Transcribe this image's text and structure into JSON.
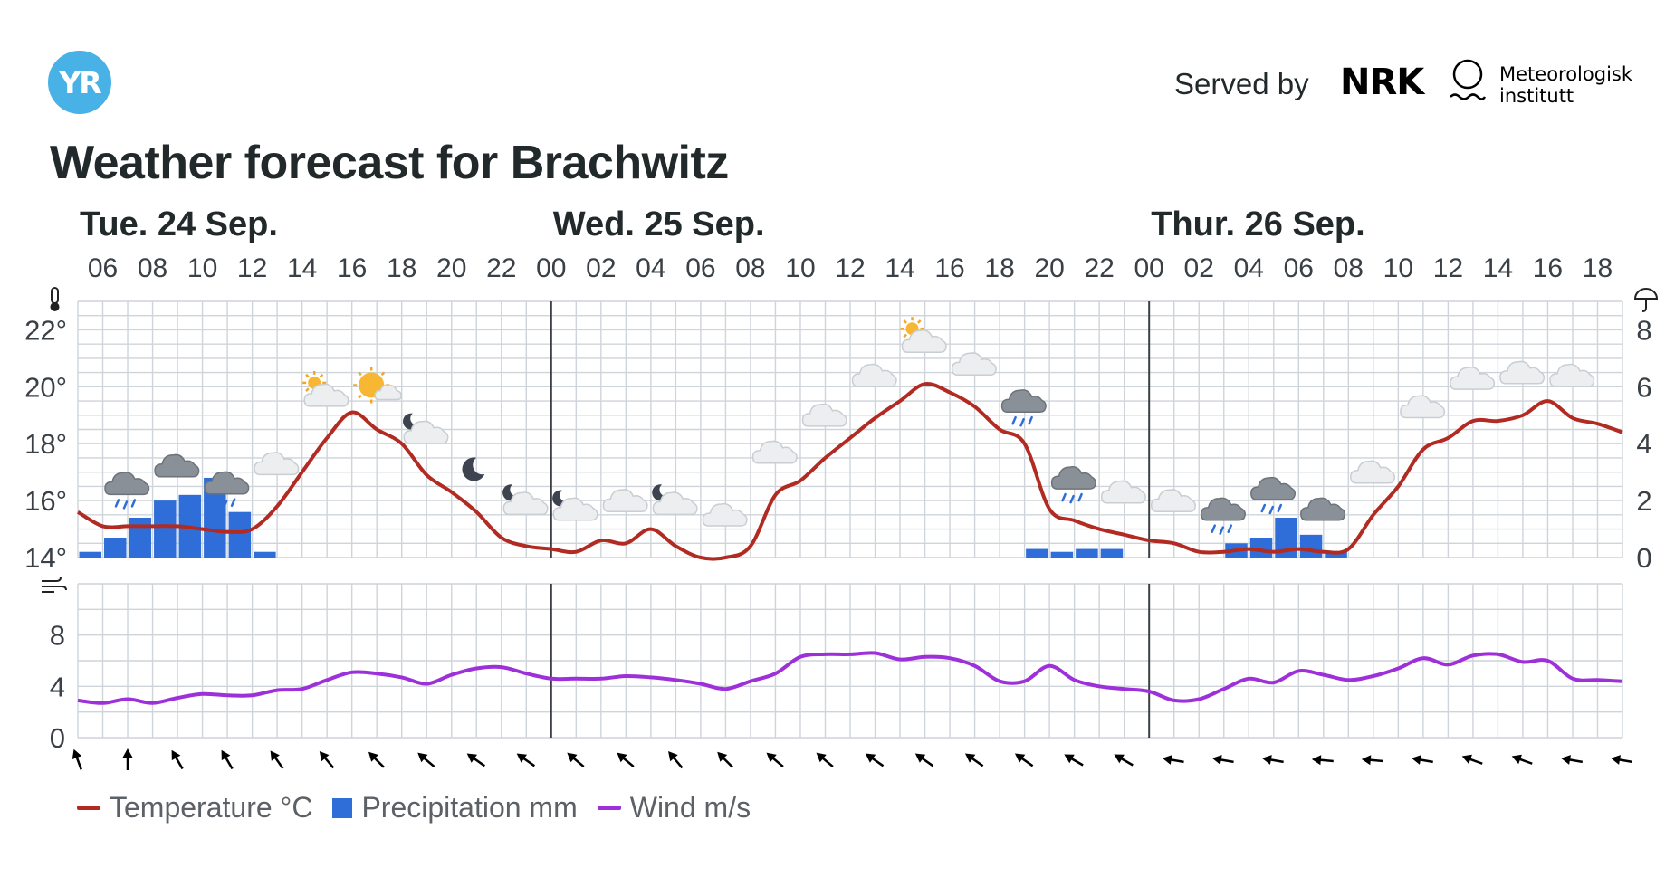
{
  "header": {
    "logo_text": "YR",
    "served_by": "Served by",
    "nrk_text": "NRK",
    "met_line1": "Meteorologisk",
    "met_line2": "institutt"
  },
  "title": "Weather forecast for Brachwitz",
  "chart_data": {
    "type": "line",
    "days": [
      {
        "label": "Tue. 24 Sep.",
        "start_hour": 5
      },
      {
        "label": "Wed. 25 Sep.",
        "start_hour": 24
      },
      {
        "label": "Thur. 26 Sep.",
        "start_hour": 48
      }
    ],
    "hour_range": [
      5,
      67
    ],
    "tick_labels": [
      "06",
      "08",
      "10",
      "12",
      "14",
      "16",
      "18",
      "20",
      "22",
      "00",
      "02",
      "04",
      "06",
      "08",
      "10",
      "12",
      "14",
      "16",
      "18",
      "20",
      "22",
      "00",
      "02",
      "04",
      "06",
      "08",
      "10",
      "12",
      "14",
      "16",
      "18"
    ],
    "tick_hours": [
      6,
      8,
      10,
      12,
      14,
      16,
      18,
      20,
      22,
      24,
      26,
      28,
      30,
      32,
      34,
      36,
      38,
      40,
      42,
      44,
      46,
      48,
      50,
      52,
      54,
      56,
      58,
      60,
      62,
      64,
      66
    ],
    "temperature": {
      "unit": "°C",
      "ylim": [
        14,
        23
      ],
      "ytick_labels": [
        "14°",
        "16°",
        "18°",
        "20°",
        "22°"
      ],
      "ytick_values": [
        14,
        16,
        18,
        20,
        22
      ],
      "points": [
        [
          5,
          15.6
        ],
        [
          6,
          15.1
        ],
        [
          7,
          15.1
        ],
        [
          8,
          15.1
        ],
        [
          9,
          15.1
        ],
        [
          10,
          15.0
        ],
        [
          11,
          14.9
        ],
        [
          12,
          15.0
        ],
        [
          13,
          15.8
        ],
        [
          14,
          17.0
        ],
        [
          15,
          18.2
        ],
        [
          16,
          19.1
        ],
        [
          17,
          18.5
        ],
        [
          18,
          18.0
        ],
        [
          19,
          16.9
        ],
        [
          20,
          16.3
        ],
        [
          21,
          15.6
        ],
        [
          22,
          14.7
        ],
        [
          23,
          14.4
        ],
        [
          24,
          14.3
        ],
        [
          25,
          14.2
        ],
        [
          26,
          14.6
        ],
        [
          27,
          14.5
        ],
        [
          28,
          15.0
        ],
        [
          29,
          14.4
        ],
        [
          30,
          14.0
        ],
        [
          31,
          14.0
        ],
        [
          32,
          14.4
        ],
        [
          33,
          16.2
        ],
        [
          34,
          16.7
        ],
        [
          35,
          17.5
        ],
        [
          36,
          18.2
        ],
        [
          37,
          18.9
        ],
        [
          38,
          19.5
        ],
        [
          39,
          20.1
        ],
        [
          40,
          19.8
        ],
        [
          41,
          19.3
        ],
        [
          42,
          18.5
        ],
        [
          43,
          18.0
        ],
        [
          44,
          15.7
        ],
        [
          45,
          15.3
        ],
        [
          46,
          15.0
        ],
        [
          47,
          14.8
        ],
        [
          48,
          14.6
        ],
        [
          49,
          14.5
        ],
        [
          50,
          14.2
        ],
        [
          51,
          14.2
        ],
        [
          52,
          14.3
        ],
        [
          53,
          14.2
        ],
        [
          54,
          14.3
        ],
        [
          55,
          14.2
        ],
        [
          56,
          14.3
        ],
        [
          57,
          15.5
        ],
        [
          58,
          16.5
        ],
        [
          59,
          17.8
        ],
        [
          60,
          18.2
        ],
        [
          61,
          18.8
        ],
        [
          62,
          18.8
        ],
        [
          63,
          19.0
        ],
        [
          64,
          19.5
        ],
        [
          65,
          18.9
        ],
        [
          66,
          18.7
        ],
        [
          67,
          18.4
        ]
      ]
    },
    "precipitation": {
      "unit": "mm",
      "ylim": [
        0,
        9
      ],
      "ytick_labels": [
        "0",
        "2",
        "4",
        "6",
        "8"
      ],
      "ytick_values": [
        0,
        2,
        4,
        6,
        8
      ],
      "bars": [
        [
          5,
          0.2
        ],
        [
          6,
          0.7
        ],
        [
          7,
          1.4
        ],
        [
          8,
          2.0
        ],
        [
          9,
          2.2
        ],
        [
          10,
          2.8
        ],
        [
          11,
          1.6
        ],
        [
          12,
          0.2
        ],
        [
          43,
          0.3
        ],
        [
          44,
          0.2
        ],
        [
          45,
          0.3
        ],
        [
          46,
          0.3
        ],
        [
          51,
          0.5
        ],
        [
          52,
          0.7
        ],
        [
          53,
          1.4
        ],
        [
          54,
          0.8
        ],
        [
          55,
          0.2
        ]
      ]
    },
    "wind": {
      "unit": "m/s",
      "ylim": [
        0,
        12
      ],
      "ytick_labels": [
        "0",
        "4",
        "8"
      ],
      "ytick_values": [
        0,
        4,
        8
      ],
      "points": [
        [
          5,
          2.9
        ],
        [
          6,
          2.7
        ],
        [
          7,
          3.0
        ],
        [
          8,
          2.7
        ],
        [
          9,
          3.1
        ],
        [
          10,
          3.4
        ],
        [
          11,
          3.3
        ],
        [
          12,
          3.3
        ],
        [
          13,
          3.7
        ],
        [
          14,
          3.8
        ],
        [
          15,
          4.5
        ],
        [
          16,
          5.1
        ],
        [
          17,
          5.0
        ],
        [
          18,
          4.7
        ],
        [
          19,
          4.2
        ],
        [
          20,
          4.9
        ],
        [
          21,
          5.4
        ],
        [
          22,
          5.5
        ],
        [
          23,
          5.0
        ],
        [
          24,
          4.6
        ],
        [
          25,
          4.6
        ],
        [
          26,
          4.6
        ],
        [
          27,
          4.8
        ],
        [
          28,
          4.7
        ],
        [
          29,
          4.5
        ],
        [
          30,
          4.2
        ],
        [
          31,
          3.8
        ],
        [
          32,
          4.4
        ],
        [
          33,
          5.0
        ],
        [
          34,
          6.3
        ],
        [
          35,
          6.5
        ],
        [
          36,
          6.5
        ],
        [
          37,
          6.6
        ],
        [
          38,
          6.1
        ],
        [
          39,
          6.3
        ],
        [
          40,
          6.2
        ],
        [
          41,
          5.6
        ],
        [
          42,
          4.4
        ],
        [
          43,
          4.4
        ],
        [
          44,
          5.6
        ],
        [
          45,
          4.5
        ],
        [
          46,
          4.0
        ],
        [
          47,
          3.8
        ],
        [
          48,
          3.6
        ],
        [
          49,
          2.9
        ],
        [
          50,
          3.0
        ],
        [
          51,
          3.8
        ],
        [
          52,
          4.6
        ],
        [
          53,
          4.3
        ],
        [
          54,
          5.2
        ],
        [
          55,
          4.9
        ],
        [
          56,
          4.5
        ],
        [
          57,
          4.8
        ],
        [
          58,
          5.4
        ],
        [
          59,
          6.2
        ],
        [
          60,
          5.7
        ],
        [
          61,
          6.4
        ],
        [
          62,
          6.5
        ],
        [
          63,
          5.9
        ],
        [
          64,
          6.0
        ],
        [
          65,
          4.6
        ],
        [
          66,
          4.5
        ],
        [
          67,
          4.4
        ]
      ]
    },
    "wind_directions_deg": [
      70,
      90,
      60,
      60,
      55,
      50,
      45,
      40,
      35,
      35,
      40,
      40,
      50,
      45,
      40,
      40,
      35,
      35,
      35,
      35,
      30,
      30,
      10,
      10,
      10,
      5,
      5,
      10,
      20,
      20,
      10,
      10
    ],
    "weather_symbols": [
      {
        "hour": 7,
        "icon": "rain-cloud-icon"
      },
      {
        "hour": 9,
        "icon": "cloud-dark-icon"
      },
      {
        "hour": 11,
        "icon": "rain-cloud-icon"
      },
      {
        "hour": 13,
        "icon": "cloud-icon"
      },
      {
        "hour": 15,
        "icon": "partly-sunny-icon"
      },
      {
        "hour": 17,
        "icon": "sun-cloud-icon"
      },
      {
        "hour": 19,
        "icon": "moon-cloud-icon"
      },
      {
        "hour": 21,
        "icon": "moon-icon"
      },
      {
        "hour": 23,
        "icon": "moon-cloud-icon"
      },
      {
        "hour": 25,
        "icon": "moon-cloud-icon"
      },
      {
        "hour": 27,
        "icon": "cloud-icon"
      },
      {
        "hour": 29,
        "icon": "moon-cloud-icon"
      },
      {
        "hour": 31,
        "icon": "cloud-icon"
      },
      {
        "hour": 33,
        "icon": "cloud-icon"
      },
      {
        "hour": 35,
        "icon": "cloud-icon"
      },
      {
        "hour": 37,
        "icon": "cloud-icon"
      },
      {
        "hour": 39,
        "icon": "partly-sunny-icon"
      },
      {
        "hour": 41,
        "icon": "cloud-icon"
      },
      {
        "hour": 43,
        "icon": "rain-cloud-icon"
      },
      {
        "hour": 45,
        "icon": "rain-cloud-icon"
      },
      {
        "hour": 47,
        "icon": "cloud-icon"
      },
      {
        "hour": 49,
        "icon": "cloud-icon"
      },
      {
        "hour": 51,
        "icon": "rain-cloud-icon"
      },
      {
        "hour": 53,
        "icon": "rain-cloud-icon"
      },
      {
        "hour": 55,
        "icon": "cloud-dark-icon"
      },
      {
        "hour": 57,
        "icon": "cloud-icon"
      },
      {
        "hour": 59,
        "icon": "cloud-icon"
      },
      {
        "hour": 61,
        "icon": "cloud-icon"
      },
      {
        "hour": 63,
        "icon": "cloud-icon"
      },
      {
        "hour": 65,
        "icon": "cloud-icon"
      }
    ],
    "legend": [
      {
        "label": "Temperature °C",
        "color": "#b12b22",
        "kind": "line"
      },
      {
        "label": "Precipitation mm",
        "color": "#2f6ed8",
        "kind": "box"
      },
      {
        "label": "Wind m/s",
        "color": "#9d30d9",
        "kind": "line"
      }
    ]
  },
  "colors": {
    "temperature": "#b12b22",
    "precipitation": "#2f6ed8",
    "wind": "#9d30d9",
    "grid": "#ced4da",
    "day_divider": "#3b3f45",
    "text": "#21292b",
    "yr_blue": "#48b1e6"
  },
  "icons": {
    "thermometer": "thermometer-icon",
    "umbrella": "umbrella-icon",
    "wind": "wind-icon"
  }
}
